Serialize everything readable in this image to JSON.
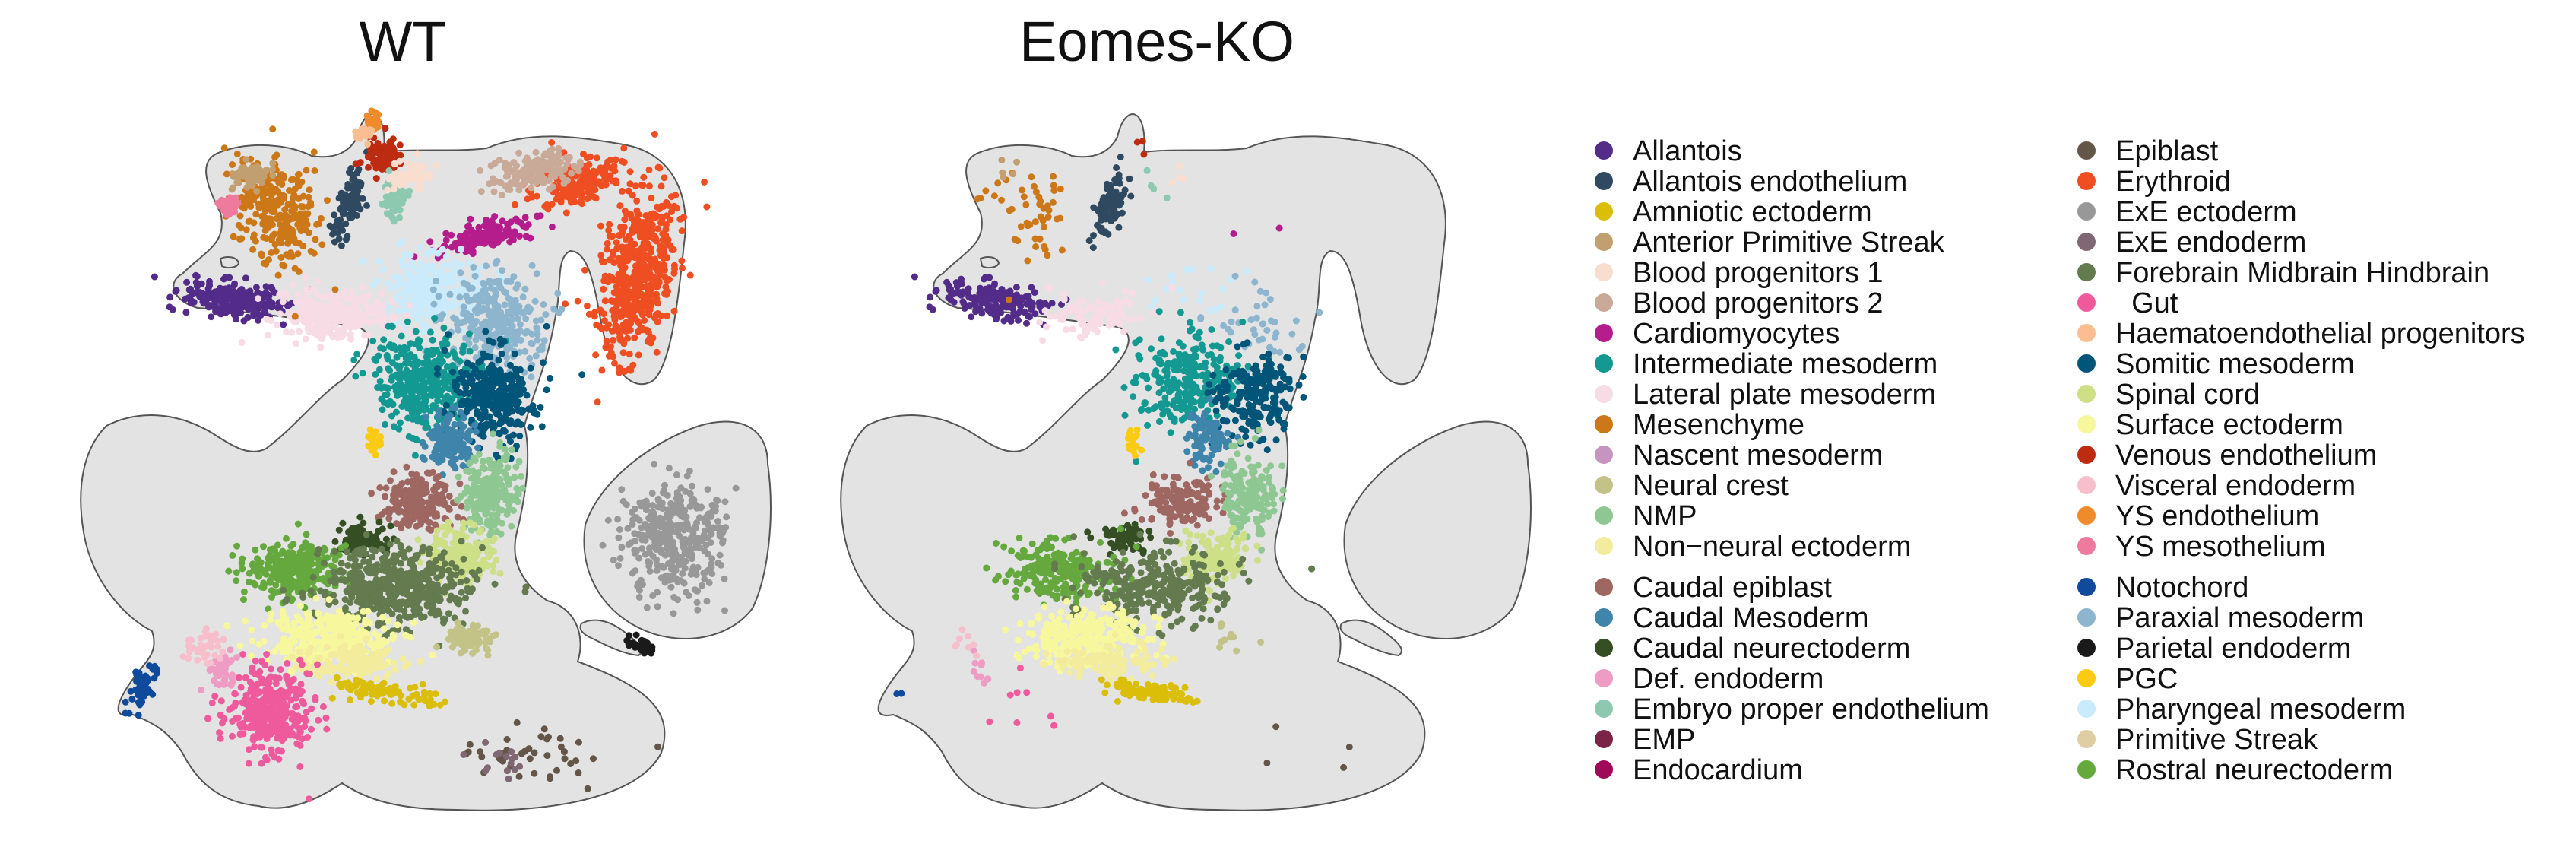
{
  "chart_data": {
    "type": "scatter",
    "description_type": "UMAP embedding of single cells colored by cell type",
    "panels": [
      {
        "title": "WT"
      },
      {
        "title": "Eomes-KO"
      }
    ],
    "legend_placement": "right",
    "legend": [
      {
        "label": "Allantois",
        "color": "#532c8a"
      },
      {
        "label": "Allantois endothelium",
        "color": "#2f4a60"
      },
      {
        "label": "Amniotic ectoderm",
        "color": "#dabe07"
      },
      {
        "label": "Anterior Primitive Streak",
        "color": "#c19f70"
      },
      {
        "label": "Blood progenitors 1",
        "color": "#f9decf"
      },
      {
        "label": "Blood progenitors 2",
        "color": "#c9a997"
      },
      {
        "label": "Cardiomyocytes",
        "color": "#b51d8d"
      },
      {
        "label": "Intermediate mesoderm",
        "color": "#139992"
      },
      {
        "label": "Lateral plate mesoderm",
        "color": "#f7dbe5"
      },
      {
        "label": "Mesenchyme",
        "color": "#cc7818"
      },
      {
        "label": "Nascent mesoderm",
        "color": "#c594bf"
      },
      {
        "label": "Neural crest",
        "color": "#c3c388"
      },
      {
        "label": "NMP",
        "color": "#8ec792"
      },
      {
        "label": "Non−neural ectoderm",
        "color": "#f3ec9c"
      },
      {
        "label": "Caudal epiblast",
        "color": "#9e6762"
      },
      {
        "label": "Caudal Mesoderm",
        "color": "#3f84aa"
      },
      {
        "label": "Caudal neurectoderm",
        "color": "#354e23"
      },
      {
        "label": "Def. endoderm",
        "color": "#ef9cc4"
      },
      {
        "label": "Embryo proper endothelium",
        "color": "#8dc9b0"
      },
      {
        "label": "EMP",
        "color": "#7c2448"
      },
      {
        "label": "Endocardium",
        "color": "#9f0a58"
      },
      {
        "label": "Epiblast",
        "color": "#635547"
      },
      {
        "label": "Erythroid",
        "color": "#ef4e22"
      },
      {
        "label": "ExE ectoderm",
        "color": "#989898"
      },
      {
        "label": "ExE endoderm",
        "color": "#7f6874"
      },
      {
        "label": "Forebrain Midbrain Hindbrain",
        "color": "#647a4f"
      },
      {
        "label": "  Gut",
        "color": "#ef5a9d"
      },
      {
        "label": "Haematoendothelial progenitors",
        "color": "#fbbe92"
      },
      {
        "label": "Somitic mesoderm",
        "color": "#005579"
      },
      {
        "label": "Spinal cord",
        "color": "#cde088"
      },
      {
        "label": "Surface ectoderm",
        "color": "#f7f79e"
      },
      {
        "label": "Venous endothelium",
        "color": "#bd2b11"
      },
      {
        "label": "Visceral endoderm",
        "color": "#f6bfcb"
      },
      {
        "label": "YS endothelium",
        "color": "#f08b2c"
      },
      {
        "label": "YS mesothelium",
        "color": "#ee7a9d"
      },
      {
        "label": "Notochord",
        "color": "#0f4a9c"
      },
      {
        "label": "Paraxial mesoderm",
        "color": "#8db5ce"
      },
      {
        "label": "Parietal endoderm",
        "color": "#1a1a1a"
      },
      {
        "label": "PGC",
        "color": "#facb12"
      },
      {
        "label": "Pharyngeal mesoderm",
        "color": "#c9ebfb"
      },
      {
        "label": "Primitive Streak",
        "color": "#dfcda4"
      },
      {
        "label": "Rostral neurectoderm",
        "color": "#65a83e"
      }
    ],
    "background_cells_color": "#e3e3e3",
    "outline_color": "#555555"
  }
}
